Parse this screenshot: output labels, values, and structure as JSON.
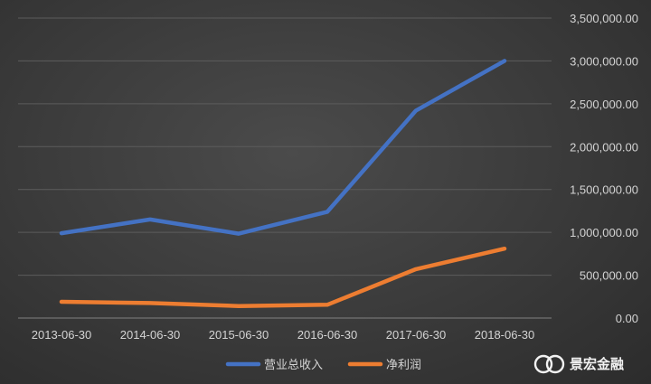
{
  "chart_data": {
    "type": "line",
    "categories": [
      "2013-06-30",
      "2014-06-30",
      "2015-06-30",
      "2016-06-30",
      "2017-06-30",
      "2018-06-30"
    ],
    "series": [
      {
        "name": "营业总收入",
        "color": "#4472c4",
        "values": [
          990000,
          1150000,
          985000,
          1240000,
          2420000,
          3000000
        ]
      },
      {
        "name": "净利润",
        "color": "#ed7d31",
        "values": [
          190000,
          175000,
          140000,
          155000,
          570000,
          810000
        ]
      }
    ],
    "y_ticks": [
      "0.00",
      "500,000.00",
      "1,000,000.00",
      "1,500,000.00",
      "2,000,000.00",
      "2,500,000.00",
      "3,000,000.00",
      "3,500,000.00"
    ],
    "ylim": [
      0,
      3500000
    ],
    "y_axis_side": "right",
    "grid": true,
    "legend_position": "bottom"
  },
  "watermark": {
    "text": "景宏金融"
  }
}
